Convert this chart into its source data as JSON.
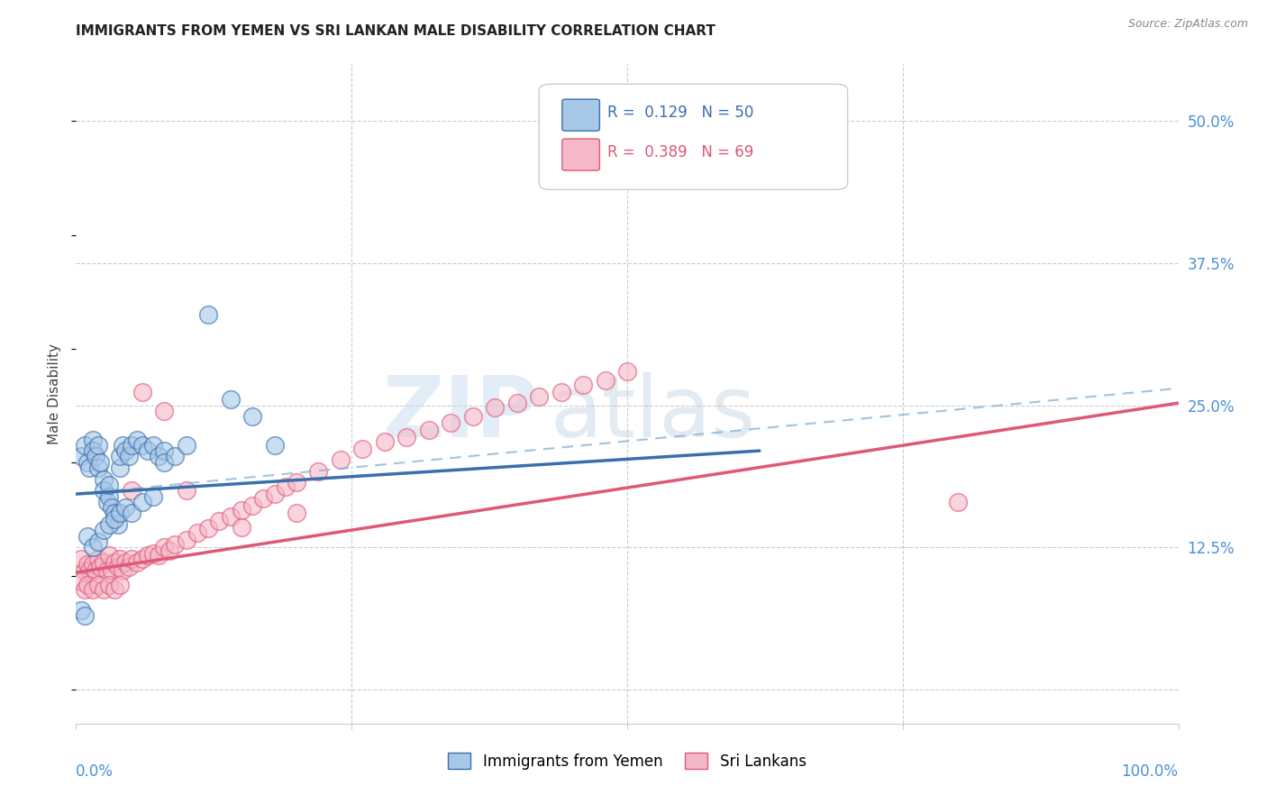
{
  "title": "IMMIGRANTS FROM YEMEN VS SRI LANKAN MALE DISABILITY CORRELATION CHART",
  "source": "Source: ZipAtlas.com",
  "ylabel": "Male Disability",
  "xlim": [
    0.0,
    1.0
  ],
  "ylim": [
    -0.03,
    0.55
  ],
  "yticks": [
    0.0,
    0.125,
    0.25,
    0.375,
    0.5
  ],
  "ytick_labels": [
    "",
    "12.5%",
    "25.0%",
    "37.5%",
    "50.0%"
  ],
  "series1_color": "#a8c8e8",
  "series2_color": "#f5b8c8",
  "trendline1_solid_color": "#3a6fad",
  "trendline1_dash_color": "#8ab4d8",
  "trendline2_color": "#e05878",
  "r1": 0.129,
  "n1": 50,
  "r2": 0.389,
  "n2": 69,
  "yemen_x": [
    0.005,
    0.008,
    0.01,
    0.012,
    0.015,
    0.015,
    0.018,
    0.02,
    0.02,
    0.022,
    0.025,
    0.025,
    0.028,
    0.03,
    0.03,
    0.032,
    0.035,
    0.038,
    0.04,
    0.04,
    0.042,
    0.045,
    0.048,
    0.05,
    0.055,
    0.06,
    0.065,
    0.07,
    0.075,
    0.08,
    0.01,
    0.015,
    0.02,
    0.025,
    0.03,
    0.035,
    0.04,
    0.045,
    0.05,
    0.06,
    0.07,
    0.08,
    0.09,
    0.1,
    0.12,
    0.14,
    0.16,
    0.18,
    0.005,
    0.008
  ],
  "yemen_y": [
    0.205,
    0.215,
    0.2,
    0.195,
    0.22,
    0.21,
    0.205,
    0.195,
    0.215,
    0.2,
    0.185,
    0.175,
    0.165,
    0.17,
    0.18,
    0.16,
    0.155,
    0.145,
    0.195,
    0.205,
    0.215,
    0.21,
    0.205,
    0.215,
    0.22,
    0.215,
    0.21,
    0.215,
    0.205,
    0.21,
    0.135,
    0.125,
    0.13,
    0.14,
    0.145,
    0.15,
    0.155,
    0.16,
    0.155,
    0.165,
    0.17,
    0.2,
    0.205,
    0.215,
    0.33,
    0.255,
    0.24,
    0.215,
    0.07,
    0.065
  ],
  "srilanka_x": [
    0.005,
    0.008,
    0.01,
    0.012,
    0.015,
    0.018,
    0.02,
    0.022,
    0.025,
    0.028,
    0.03,
    0.032,
    0.035,
    0.038,
    0.04,
    0.042,
    0.045,
    0.048,
    0.05,
    0.055,
    0.06,
    0.065,
    0.07,
    0.075,
    0.08,
    0.085,
    0.09,
    0.1,
    0.11,
    0.12,
    0.13,
    0.14,
    0.15,
    0.16,
    0.17,
    0.18,
    0.19,
    0.2,
    0.22,
    0.24,
    0.26,
    0.28,
    0.3,
    0.32,
    0.34,
    0.36,
    0.38,
    0.4,
    0.42,
    0.44,
    0.46,
    0.48,
    0.5,
    0.005,
    0.008,
    0.01,
    0.015,
    0.02,
    0.025,
    0.03,
    0.035,
    0.04,
    0.05,
    0.06,
    0.08,
    0.1,
    0.15,
    0.2,
    0.8
  ],
  "srilanka_y": [
    0.115,
    0.105,
    0.11,
    0.105,
    0.11,
    0.105,
    0.115,
    0.108,
    0.112,
    0.105,
    0.118,
    0.105,
    0.112,
    0.108,
    0.115,
    0.105,
    0.112,
    0.108,
    0.115,
    0.112,
    0.115,
    0.118,
    0.12,
    0.118,
    0.125,
    0.122,
    0.128,
    0.132,
    0.138,
    0.142,
    0.148,
    0.152,
    0.158,
    0.162,
    0.168,
    0.172,
    0.178,
    0.182,
    0.192,
    0.202,
    0.212,
    0.218,
    0.222,
    0.228,
    0.235,
    0.24,
    0.248,
    0.252,
    0.258,
    0.262,
    0.268,
    0.272,
    0.28,
    0.095,
    0.088,
    0.092,
    0.088,
    0.092,
    0.088,
    0.092,
    0.088,
    0.092,
    0.175,
    0.262,
    0.245,
    0.175,
    0.143,
    0.155,
    0.165
  ],
  "trendline1_x0": 0.0,
  "trendline1_y0": 0.172,
  "trendline1_x1": 0.62,
  "trendline1_y1": 0.21,
  "trendline1_dash_x1": 1.0,
  "trendline1_dash_y1": 0.265,
  "trendline2_x0": 0.0,
  "trendline2_y0": 0.103,
  "trendline2_x1": 1.0,
  "trendline2_y1": 0.252
}
